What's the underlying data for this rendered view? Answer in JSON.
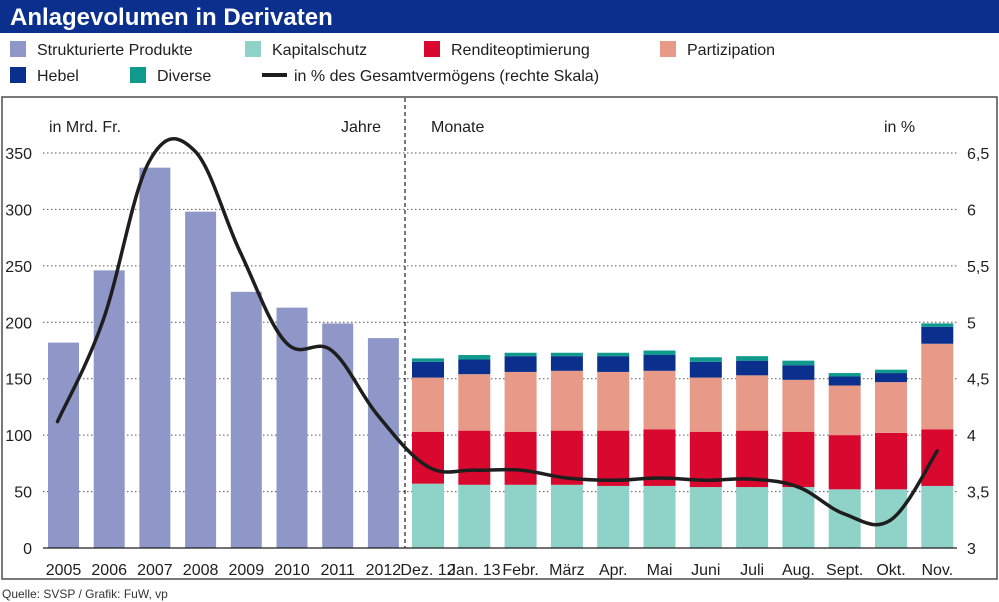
{
  "chart_data": {
    "type": "bar",
    "title": "Anlagevolumen in Derivaten",
    "source": "Quelle: SVSP / Grafik: FuW, vp",
    "left_axis_label": "in Mrd. Fr.",
    "right_axis_label": "in %",
    "years_section_label": "Jahre",
    "months_section_label": "Monate",
    "ylim": [
      0,
      350
    ],
    "yticks": [
      "0",
      "50",
      "100",
      "150",
      "200",
      "250",
      "300",
      "350"
    ],
    "y2lim": [
      3,
      6.5
    ],
    "y2ticks": [
      "3",
      "3,5",
      "4",
      "4,5",
      "5",
      "5,5",
      "6",
      "6,5"
    ],
    "legend": [
      {
        "label": "Strukturierte Produkte",
        "color": "#8f97c9",
        "symbol": "square"
      },
      {
        "label": "Kapitalschutz",
        "color": "#8ed2c8",
        "symbol": "square"
      },
      {
        "label": "Renditeoptimierung",
        "color": "#d9082f",
        "symbol": "square"
      },
      {
        "label": "Partizipation",
        "color": "#e89a88",
        "symbol": "square"
      },
      {
        "label": "Hebel",
        "color": "#0b2f8c",
        "symbol": "square"
      },
      {
        "label": "Diverse",
        "color": "#0f9a8d",
        "symbol": "square"
      },
      {
        "label": "in % des Gesamtvermögens (rechte Skala)",
        "color": "#1e1e1e",
        "symbol": "line"
      }
    ],
    "annual": {
      "categories": [
        "2005",
        "2006",
        "2007",
        "2008",
        "2009",
        "2010",
        "2011",
        "2012"
      ],
      "values": [
        182,
        246,
        337,
        298,
        227,
        213,
        199,
        186
      ],
      "color": "#8f97c9"
    },
    "monthly": {
      "categories": [
        "Dez. 12",
        "Jan. 13",
        "Febr.",
        "März",
        "Apr.",
        "Mai",
        "Juni",
        "Juli",
        "Aug.",
        "Sept.",
        "Okt.",
        "Nov."
      ],
      "series": [
        {
          "name": "Kapitalschutz",
          "color": "#8ed2c8",
          "values": [
            57,
            56,
            56,
            56,
            55,
            55,
            54,
            54,
            54,
            52,
            52,
            55
          ]
        },
        {
          "name": "Renditeoptimierung",
          "color": "#d9082f",
          "values": [
            46,
            48,
            47,
            48,
            49,
            50,
            49,
            50,
            49,
            48,
            50,
            50
          ]
        },
        {
          "name": "Partizipation",
          "color": "#e89a88",
          "values": [
            48,
            50,
            53,
            53,
            52,
            52,
            48,
            49,
            46,
            44,
            45,
            76
          ]
        },
        {
          "name": "Hebel",
          "color": "#0b2f8c",
          "values": [
            14,
            13,
            14,
            13,
            14,
            14,
            14,
            13,
            13,
            8,
            8,
            15
          ]
        },
        {
          "name": "Diverse",
          "color": "#0f9a8d",
          "values": [
            3,
            4,
            3,
            3,
            3,
            4,
            4,
            4,
            4,
            3,
            3,
            3
          ]
        }
      ]
    },
    "share_line": {
      "name": "in % des Gesamtvermögens (rechte Skala)",
      "color": "#1e1e1e",
      "annual_values": [
        4.12,
        5.02,
        6.42,
        6.52,
        5.62,
        4.82,
        4.75,
        4.18
      ],
      "monthly_values": [
        3.72,
        3.69,
        3.69,
        3.62,
        3.6,
        3.62,
        3.6,
        3.61,
        3.54,
        3.3,
        3.25,
        3.86
      ]
    }
  }
}
